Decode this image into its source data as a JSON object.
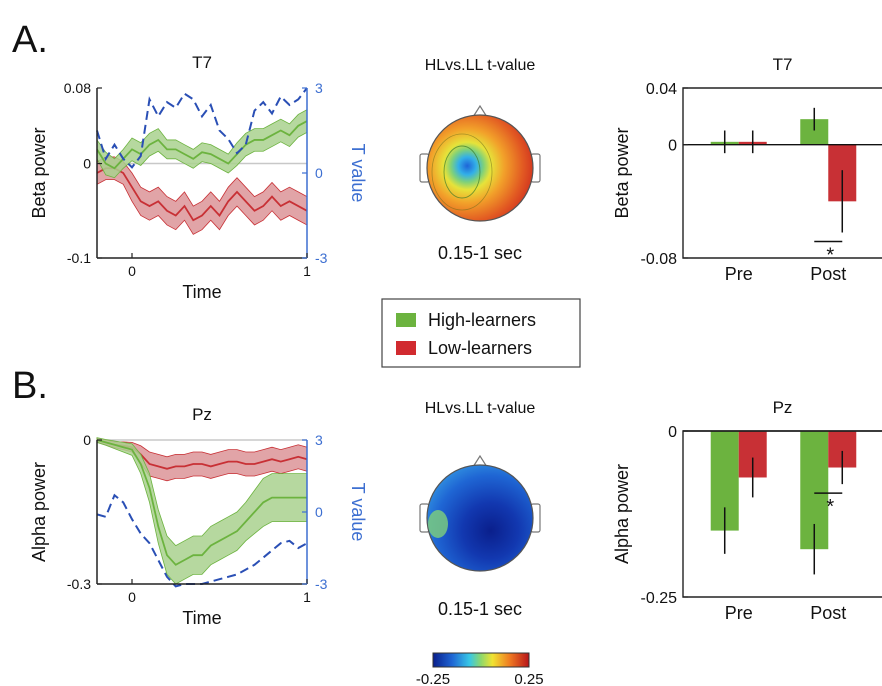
{
  "panels": {
    "a": {
      "letter": "A."
    },
    "b": {
      "letter": "B."
    }
  },
  "legend": {
    "items": [
      {
        "label": "High-learners",
        "color": "#6cb33f"
      },
      {
        "label": "Low-learners",
        "color": "#d12a2f"
      }
    ]
  },
  "colorbar": {
    "min_label": "-0.25",
    "max_label": "0.25"
  },
  "colors": {
    "high": "#6cb33f",
    "high_fill": "#a9d18e",
    "low": "#c83035",
    "low_fill": "#dc9498",
    "tline": "#2a4fb5",
    "taxis": "#3d6fd1"
  },
  "chart_data": [
    {
      "id": "a_line",
      "type": "line",
      "title": "T7",
      "xlabel": "Time",
      "ylabel": "Beta power",
      "y2label": "T value",
      "xlim": [
        -0.2,
        1.0
      ],
      "ylim": [
        -0.1,
        0.08
      ],
      "y2lim": [
        -3,
        3
      ],
      "xticks": [
        "0",
        "1"
      ],
      "yticks": [
        "0.08",
        "0",
        "-0.1"
      ],
      "y2ticks": [
        "3",
        "0",
        "-3"
      ],
      "x": [
        -0.2,
        -0.15,
        -0.1,
        -0.05,
        0,
        0.05,
        0.1,
        0.15,
        0.2,
        0.25,
        0.3,
        0.35,
        0.4,
        0.45,
        0.5,
        0.55,
        0.6,
        0.65,
        0.7,
        0.75,
        0.8,
        0.85,
        0.9,
        0.95,
        1.0
      ],
      "series": [
        {
          "name": "High-learners",
          "values": [
            0.015,
            0.0,
            -0.005,
            0.005,
            0.015,
            0.01,
            0.02,
            0.025,
            0.015,
            0.015,
            0.01,
            0.005,
            0.012,
            0.01,
            0.005,
            0.0,
            0.01,
            0.02,
            0.025,
            0.025,
            0.03,
            0.035,
            0.03,
            0.04,
            0.045
          ],
          "error": [
            0.01,
            0.012,
            0.01,
            0.01,
            0.012,
            0.012,
            0.012,
            0.012,
            0.01,
            0.01,
            0.01,
            0.01,
            0.01,
            0.01,
            0.01,
            0.01,
            0.012,
            0.012,
            0.012,
            0.012,
            0.012,
            0.012,
            0.012,
            0.012,
            0.012
          ]
        },
        {
          "name": "Low-learners",
          "values": [
            -0.01,
            -0.005,
            -0.005,
            -0.01,
            -0.025,
            -0.04,
            -0.045,
            -0.04,
            -0.05,
            -0.055,
            -0.045,
            -0.06,
            -0.055,
            -0.045,
            -0.055,
            -0.04,
            -0.03,
            -0.04,
            -0.05,
            -0.045,
            -0.035,
            -0.045,
            -0.04,
            -0.045,
            -0.05
          ],
          "error": [
            0.012,
            0.012,
            0.012,
            0.012,
            0.015,
            0.015,
            0.015,
            0.015,
            0.015,
            0.015,
            0.015,
            0.015,
            0.015,
            0.015,
            0.015,
            0.015,
            0.015,
            0.015,
            0.015,
            0.015,
            0.015,
            0.015,
            0.015,
            0.015,
            0.015
          ]
        }
      ],
      "tvalue": [
        1.5,
        0.5,
        1.0,
        0.5,
        0.2,
        0.6,
        2.6,
        2.0,
        2.5,
        2.3,
        2.8,
        2.6,
        2.0,
        2.4,
        1.5,
        1.2,
        0.7,
        1.0,
        2.2,
        2.5,
        2.1,
        2.7,
        2.4,
        2.6,
        3.0
      ]
    },
    {
      "id": "a_topo",
      "type": "heatmap",
      "title": "HLvs.LL t-value",
      "caption": "0.15-1 sec"
    },
    {
      "id": "a_bar",
      "type": "bar",
      "title": "T7",
      "ylabel": "Beta power",
      "categories": [
        "Pre",
        "Post"
      ],
      "ylim": [
        -0.08,
        0.04
      ],
      "yticks": [
        "0.04",
        "0",
        "-0.08"
      ],
      "series": [
        {
          "name": "High-learners",
          "values": [
            0.002,
            0.018
          ],
          "error": [
            0.008,
            0.008
          ]
        },
        {
          "name": "Low-learners",
          "values": [
            0.002,
            -0.04
          ],
          "error": [
            0.008,
            0.022
          ]
        }
      ],
      "significance": "*"
    },
    {
      "id": "b_line",
      "type": "line",
      "title": "Pz",
      "xlabel": "Time",
      "ylabel": "Alpha power",
      "y2label": "T value",
      "xlim": [
        -0.2,
        1.0
      ],
      "ylim": [
        -0.3,
        0.0
      ],
      "y2lim": [
        -3,
        3
      ],
      "xticks": [
        "0",
        "1"
      ],
      "yticks": [
        "0",
        "-0.3"
      ],
      "y2ticks": [
        "3",
        "0",
        "-3"
      ],
      "x": [
        -0.2,
        -0.15,
        -0.1,
        -0.05,
        0,
        0.05,
        0.1,
        0.15,
        0.2,
        0.25,
        0.3,
        0.35,
        0.4,
        0.45,
        0.5,
        0.55,
        0.6,
        0.65,
        0.7,
        0.75,
        0.8,
        0.85,
        0.9,
        0.95,
        1.0
      ],
      "series": [
        {
          "name": "High-learners",
          "values": [
            0.0,
            -0.005,
            -0.01,
            -0.015,
            -0.02,
            -0.05,
            -0.1,
            -0.18,
            -0.24,
            -0.26,
            -0.25,
            -0.24,
            -0.24,
            -0.22,
            -0.21,
            -0.2,
            -0.19,
            -0.17,
            -0.15,
            -0.13,
            -0.12,
            -0.12,
            -0.12,
            -0.12,
            -0.12
          ],
          "error": [
            0.005,
            0.006,
            0.008,
            0.01,
            0.012,
            0.02,
            0.03,
            0.035,
            0.04,
            0.04,
            0.04,
            0.04,
            0.04,
            0.04,
            0.04,
            0.04,
            0.04,
            0.04,
            0.045,
            0.05,
            0.05,
            0.05,
            0.05,
            0.05,
            0.05
          ]
        },
        {
          "name": "Low-learners",
          "values": [
            0.0,
            -0.005,
            -0.01,
            -0.012,
            -0.015,
            -0.03,
            -0.05,
            -0.055,
            -0.06,
            -0.055,
            -0.055,
            -0.05,
            -0.05,
            -0.055,
            -0.05,
            -0.045,
            -0.045,
            -0.05,
            -0.05,
            -0.045,
            -0.04,
            -0.045,
            -0.04,
            -0.035,
            -0.04
          ],
          "error": [
            0.004,
            0.005,
            0.006,
            0.008,
            0.01,
            0.018,
            0.025,
            0.025,
            0.025,
            0.025,
            0.025,
            0.025,
            0.025,
            0.025,
            0.025,
            0.025,
            0.025,
            0.025,
            0.025,
            0.025,
            0.025,
            0.025,
            0.025,
            0.025,
            0.025
          ]
        }
      ],
      "tvalue": [
        -0.1,
        -0.2,
        0.7,
        0.4,
        -0.3,
        -0.9,
        -1.3,
        -2.0,
        -2.7,
        -3.1,
        -3.0,
        -3.0,
        -3.0,
        -2.9,
        -2.8,
        -2.7,
        -2.6,
        -2.4,
        -2.2,
        -1.9,
        -1.6,
        -1.3,
        -1.2,
        -1.5,
        -1.3
      ]
    },
    {
      "id": "b_topo",
      "type": "heatmap",
      "title": "HLvs.LL t-value",
      "caption": "0.15-1 sec"
    },
    {
      "id": "b_bar",
      "type": "bar",
      "title": "Pz",
      "ylabel": "Alpha power",
      "categories": [
        "Pre",
        "Post"
      ],
      "ylim": [
        -0.25,
        0.0
      ],
      "yticks": [
        "0",
        "-0.25"
      ],
      "series": [
        {
          "name": "High-learners",
          "values": [
            -0.15,
            -0.178
          ],
          "error": [
            0.035,
            0.038
          ]
        },
        {
          "name": "Low-learners",
          "values": [
            -0.07,
            -0.055
          ],
          "error": [
            0.03,
            0.025
          ]
        }
      ],
      "significance": "*"
    }
  ]
}
